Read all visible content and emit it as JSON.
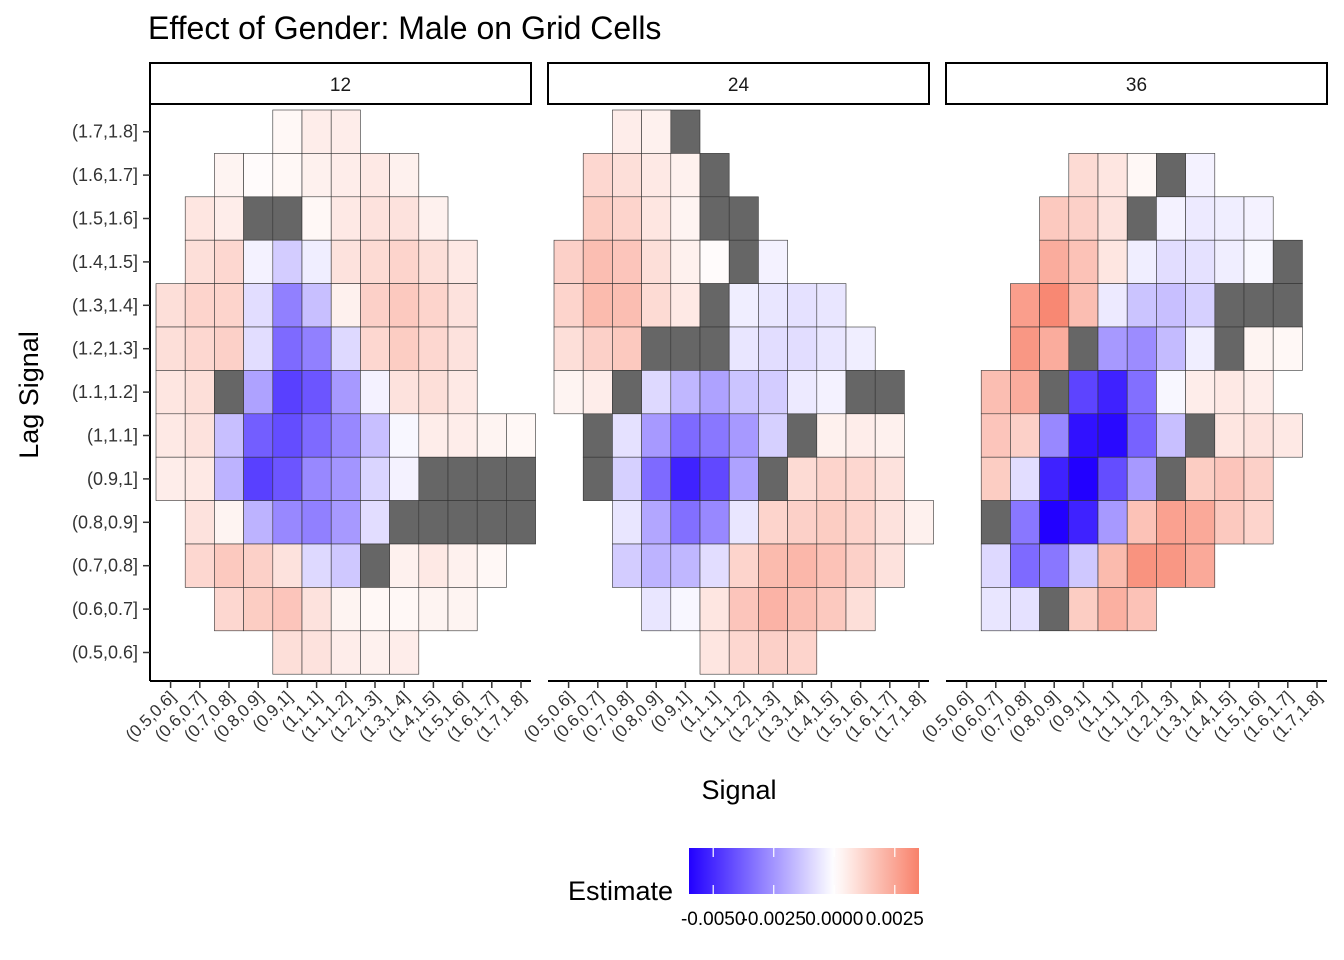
{
  "chart_data": {
    "type": "heatmap",
    "title": "Effect of Gender: Male on Grid Cells",
    "xlabel": "Signal",
    "ylabel": "Lag Signal",
    "x_categories": [
      "(0.5,0.6]",
      "(0.6,0.7]",
      "(0.7,0.8]",
      "(0.8,0.9]",
      "(0.9,1]",
      "(1,1.1]",
      "(1.1,1.2]",
      "(1.2,1.3]",
      "(1.3,1.4]",
      "(1.4,1.5]",
      "(1.5,1.6]",
      "(1.6,1.7]",
      "(1.7,1.8]"
    ],
    "y_categories": [
      "(0.5,0.6]",
      "(0.6,0.7]",
      "(0.7,0.8]",
      "(0.8,0.9]",
      "(0.9,1]",
      "(1,1.1]",
      "(1.1,1.2]",
      "(1.2,1.3]",
      "(1.3,1.4]",
      "(1.4,1.5]",
      "(1.5,1.6]",
      "(1.6,1.7]",
      "(1.7,1.8]"
    ],
    "legend": {
      "title": "Estimate",
      "position": "bottom",
      "tick_labels": [
        "-0.0050",
        "-0.0025",
        "0.0000",
        "0.0025"
      ],
      "tick_values": [
        -0.005,
        -0.0025,
        0,
        0.0025
      ],
      "range": [
        -0.006,
        0.0035
      ],
      "low_color": "#2200ff",
      "mid_color": "#ffffff",
      "high_color": "#f8816a",
      "na_color": "#666666"
    },
    "panels": [
      {
        "label": "12",
        "rows": [
          [
            null,
            null,
            null,
            null,
            0.0002,
            0.0005,
            0.0005,
            null,
            null,
            null,
            null,
            null,
            null
          ],
          [
            null,
            null,
            0.0003,
            0.0001,
            0.0002,
            0.0004,
            0.0005,
            0.0006,
            0.0004,
            null,
            null,
            null,
            null
          ],
          [
            null,
            0.0007,
            0.0005,
            "NA",
            "NA",
            0.0002,
            0.0006,
            0.0008,
            0.0008,
            0.0004,
            null,
            null,
            null
          ],
          [
            null,
            0.0009,
            0.0011,
            -0.0003,
            -0.0012,
            -0.0004,
            0.0008,
            0.001,
            0.0012,
            0.0009,
            0.0006,
            null,
            null
          ],
          [
            0.0009,
            0.0012,
            0.0012,
            -0.0008,
            -0.003,
            -0.0015,
            0.0004,
            0.0013,
            0.0015,
            0.0012,
            0.0008,
            null,
            null
          ],
          [
            0.0009,
            0.0011,
            0.0013,
            -0.0008,
            -0.0035,
            -0.003,
            -0.0009,
            0.0011,
            0.0014,
            0.0011,
            0.0008,
            null,
            null
          ],
          [
            0.0007,
            0.0009,
            "NA",
            -0.0022,
            -0.0045,
            -0.004,
            -0.0024,
            -0.0003,
            0.0008,
            0.0009,
            0.0006,
            null,
            null
          ],
          [
            0.0006,
            0.0008,
            -0.0015,
            -0.0038,
            -0.0042,
            -0.0035,
            -0.0028,
            -0.0015,
            -0.0002,
            0.0005,
            0.0005,
            0.0003,
            0.0002
          ],
          [
            0.0005,
            0.0006,
            -0.0018,
            -0.0045,
            -0.004,
            -0.0028,
            -0.0025,
            -0.001,
            -0.0003,
            "NA",
            "NA",
            "NA",
            "NA"
          ],
          [
            null,
            0.0008,
            0.0003,
            -0.0018,
            -0.0028,
            -0.003,
            -0.0024,
            -0.0008,
            "NA",
            "NA",
            "NA",
            "NA",
            "NA"
          ],
          [
            null,
            0.0011,
            0.0015,
            0.0013,
            0.0008,
            -0.0009,
            -0.0013,
            "NA",
            0.0004,
            0.0006,
            0.0004,
            0.0002,
            null
          ],
          [
            null,
            null,
            0.0011,
            0.0014,
            0.0016,
            0.0008,
            0.0003,
            0.0002,
            0.0002,
            0.0003,
            0.0003,
            null,
            null
          ],
          [
            null,
            null,
            null,
            null,
            0.0009,
            0.0008,
            0.0005,
            0.0004,
            0.0005,
            null,
            null,
            null,
            null
          ]
        ]
      },
      {
        "label": "24",
        "rows": [
          [
            null,
            null,
            0.0005,
            0.0004,
            "NA",
            null,
            null,
            null,
            null,
            null,
            null,
            null,
            null
          ],
          [
            null,
            0.0011,
            0.0009,
            0.0006,
            0.0004,
            "NA",
            null,
            null,
            null,
            null,
            null,
            null,
            null
          ],
          [
            null,
            0.0014,
            0.0012,
            0.0007,
            0.0003,
            "NA",
            "NA",
            null,
            null,
            null,
            null,
            null,
            null
          ],
          [
            0.0013,
            0.0018,
            0.0016,
            0.0009,
            0.0004,
            0.0001,
            "NA",
            -0.0003,
            null,
            null,
            null,
            null,
            null
          ],
          [
            0.0012,
            0.0019,
            0.0018,
            0.001,
            0.0006,
            "NA",
            -0.0004,
            -0.0006,
            -0.0007,
            -0.0006,
            null,
            null,
            null
          ],
          [
            0.0009,
            0.0013,
            0.0015,
            "NA",
            "NA",
            "NA",
            -0.0006,
            -0.0008,
            -0.0008,
            -0.0006,
            -0.0004,
            null,
            null
          ],
          [
            0.0003,
            0.0005,
            "NA",
            -0.0009,
            -0.0017,
            -0.0022,
            -0.0014,
            -0.0012,
            -0.0005,
            -0.0003,
            "NA",
            "NA",
            null
          ],
          [
            null,
            "NA",
            -0.0007,
            -0.0024,
            -0.0035,
            -0.0032,
            -0.0024,
            -0.0011,
            "NA",
            0.0004,
            0.0005,
            0.0004,
            null
          ],
          [
            null,
            "NA",
            -0.0011,
            -0.0035,
            -0.0052,
            -0.0043,
            -0.0022,
            "NA",
            0.001,
            0.0012,
            0.0011,
            0.0008,
            null
          ],
          [
            null,
            null,
            -0.0006,
            -0.0021,
            -0.0034,
            -0.0028,
            -0.0006,
            0.0012,
            0.0013,
            0.0014,
            0.0012,
            0.0008,
            0.0004
          ],
          [
            null,
            null,
            -0.0012,
            -0.0018,
            -0.0017,
            -0.0008,
            0.0012,
            0.0019,
            0.002,
            0.0017,
            0.0013,
            0.0008,
            null
          ],
          [
            null,
            null,
            null,
            -0.0006,
            -0.0002,
            0.0007,
            0.0016,
            0.0021,
            0.0018,
            0.0015,
            0.0009,
            null,
            null
          ],
          [
            null,
            null,
            null,
            null,
            null,
            0.0007,
            0.0011,
            0.0013,
            0.0012,
            null,
            null,
            null,
            null
          ]
        ]
      },
      {
        "label": "36",
        "rows": [
          [
            null,
            null,
            null,
            null,
            null,
            null,
            null,
            null,
            null,
            null,
            null,
            null,
            null
          ],
          [
            null,
            null,
            null,
            null,
            0.001,
            0.0007,
            0.0002,
            "NA",
            -0.0003,
            null,
            null,
            null,
            null
          ],
          [
            null,
            null,
            null,
            0.0015,
            0.0013,
            0.0008,
            "NA",
            -0.0003,
            -0.0005,
            -0.0004,
            -0.0003,
            null,
            null
          ],
          [
            null,
            null,
            null,
            0.0023,
            0.0017,
            0.0007,
            -0.0004,
            -0.0008,
            -0.0007,
            -0.0004,
            -0.0002,
            "NA",
            null
          ],
          [
            null,
            null,
            0.0027,
            0.0033,
            0.0018,
            -0.0005,
            -0.0014,
            -0.0015,
            -0.0011,
            "NA",
            "NA",
            "NA",
            null
          ],
          [
            null,
            null,
            0.0029,
            0.0023,
            "NA",
            -0.0024,
            -0.0027,
            -0.0016,
            -0.0004,
            "NA",
            0.0003,
            0.0002,
            null
          ],
          [
            null,
            0.0018,
            0.0023,
            "NA",
            -0.0044,
            -0.0052,
            -0.0034,
            -0.0002,
            0.0005,
            0.0006,
            0.0005,
            null,
            null
          ],
          [
            null,
            0.0016,
            0.0013,
            -0.0028,
            -0.0056,
            -0.0058,
            -0.0037,
            -0.0015,
            "NA",
            0.0007,
            0.0008,
            0.0006,
            null
          ],
          [
            null,
            0.0014,
            -0.0008,
            -0.0052,
            -0.006,
            -0.0042,
            -0.0024,
            "NA",
            0.0014,
            0.0016,
            0.0013,
            null,
            null
          ],
          [
            null,
            "NA",
            -0.0032,
            -0.0062,
            -0.0052,
            -0.0024,
            0.0017,
            0.0026,
            0.0024,
            0.0015,
            0.0012,
            null,
            null
          ],
          [
            null,
            -0.0009,
            -0.0035,
            -0.0032,
            -0.0013,
            0.0019,
            0.003,
            0.0029,
            0.0024,
            null,
            null,
            null,
            null
          ],
          [
            null,
            -0.0006,
            -0.0007,
            "NA",
            0.0014,
            0.0022,
            0.0017,
            null,
            null,
            null,
            null,
            null,
            null
          ],
          [
            null,
            null,
            null,
            null,
            null,
            null,
            null,
            null,
            null,
            null,
            null,
            null,
            null
          ]
        ]
      }
    ]
  }
}
